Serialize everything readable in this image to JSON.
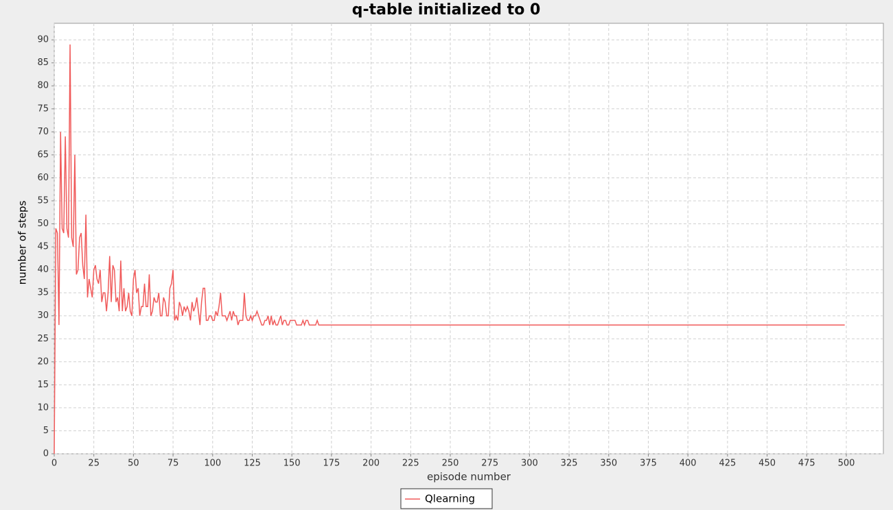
{
  "chart_data": {
    "type": "line",
    "title": "q-table initialized to 0",
    "x_label": "episode number",
    "y_label": "number of steps",
    "x": [
      0,
      1,
      2,
      3,
      4,
      5,
      6,
      7,
      8,
      9,
      10,
      11,
      12,
      13,
      14,
      15,
      16,
      17,
      18,
      19,
      20,
      21,
      22,
      23,
      24,
      25,
      26,
      27,
      28,
      29,
      30,
      31,
      32,
      33,
      34,
      35,
      36,
      37,
      38,
      39,
      40,
      41,
      42,
      43,
      44,
      45,
      46,
      47,
      48,
      49,
      50,
      51,
      52,
      53,
      54,
      55,
      56,
      57,
      58,
      59,
      60,
      61,
      62,
      63,
      64,
      65,
      66,
      67,
      68,
      69,
      70,
      71,
      72,
      73,
      74,
      75,
      76,
      77,
      78,
      79,
      80,
      81,
      82,
      83,
      84,
      85,
      86,
      87,
      88,
      89,
      90,
      91,
      92,
      93,
      94,
      95,
      96,
      97,
      98,
      99,
      100,
      101,
      102,
      103,
      104,
      105,
      106,
      107,
      108,
      109,
      110,
      111,
      112,
      113,
      114,
      115,
      116,
      117,
      118,
      119,
      120,
      121,
      122,
      123,
      124,
      125,
      126,
      127,
      128,
      129,
      130,
      131,
      132,
      133,
      134,
      135,
      136,
      137,
      138,
      139,
      140,
      141,
      142,
      143,
      144,
      145,
      146,
      147,
      148,
      149,
      150,
      151,
      152,
      153,
      154,
      155,
      156,
      157,
      158,
      159,
      160,
      161,
      162,
      163,
      164,
      165,
      166,
      167,
      168,
      499
    ],
    "series": [
      {
        "name": "Qlearning",
        "color": "#f05a5a",
        "values": [
          0,
          49,
          48,
          28,
          70,
          49,
          48,
          69,
          49,
          47,
          89,
          47,
          45,
          65,
          39,
          40,
          47,
          48,
          41,
          38,
          52,
          34,
          38,
          36,
          34,
          40,
          41,
          38,
          37,
          40,
          33,
          35,
          35,
          31,
          35,
          43,
          33,
          41,
          40,
          33,
          34,
          31,
          42,
          31,
          36,
          31,
          32,
          35,
          31,
          30,
          38,
          40,
          35,
          36,
          30,
          32,
          32,
          37,
          32,
          32,
          39,
          30,
          31,
          34,
          33,
          33,
          35,
          30,
          30,
          34,
          33,
          30,
          30,
          36,
          37,
          40,
          29,
          30,
          29,
          33,
          32,
          30,
          32,
          31,
          32,
          31,
          29,
          33,
          31,
          32,
          34,
          31,
          28,
          33,
          36,
          36,
          29,
          29,
          30,
          30,
          29,
          29,
          31,
          30,
          32,
          35,
          30,
          30,
          30,
          29,
          30,
          31,
          29,
          31,
          30,
          30,
          28,
          29,
          29,
          29,
          35,
          30,
          29,
          29,
          30,
          29,
          30,
          30,
          31,
          30,
          29,
          28,
          28,
          29,
          29,
          30,
          28,
          30,
          28,
          29,
          28,
          28,
          29,
          30,
          28,
          29,
          29,
          28,
          28,
          29,
          29,
          29,
          29,
          28,
          28,
          28,
          28,
          29,
          28,
          29,
          29,
          28,
          28,
          28,
          28,
          28,
          29,
          28,
          28,
          28
        ]
      }
    ],
    "xlim": [
      0,
      523.4
    ],
    "ylim": [
      0,
      93.6
    ],
    "xticks": [
      0,
      25,
      50,
      75,
      100,
      125,
      150,
      175,
      200,
      225,
      250,
      275,
      300,
      325,
      350,
      375,
      400,
      425,
      450,
      475,
      500
    ],
    "yticks": [
      0,
      5,
      10,
      15,
      20,
      25,
      30,
      35,
      40,
      45,
      50,
      55,
      60,
      65,
      70,
      75,
      80,
      85,
      90
    ],
    "grid": true,
    "legend": "bottom"
  }
}
